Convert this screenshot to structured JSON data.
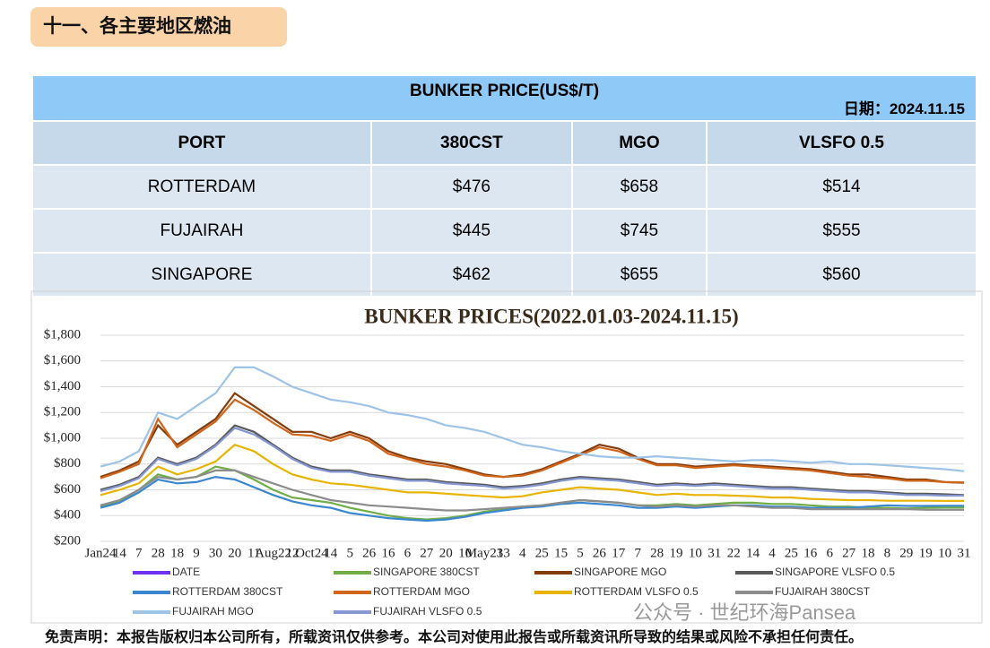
{
  "header": {
    "title": "十一、各主要地区燃油"
  },
  "table": {
    "title": "BUNKER PRICE(US$/T)",
    "date": "日期：2024.11.15",
    "columns": [
      "PORT",
      "380CST",
      "MGO",
      "VLSFO 0.5"
    ],
    "rows": [
      [
        "ROTTERDAM",
        "$476",
        "$658",
        "$514"
      ],
      [
        "FUJAIRAH",
        "$445",
        "$745",
        "$555"
      ],
      [
        "SINGAPORE",
        "$462",
        "$655",
        "$560"
      ]
    ]
  },
  "chart_data": {
    "type": "line",
    "title": "BUNKER PRICES(2022.01.03-2024.11.15)",
    "categories": [
      "Jan24",
      "14",
      "7",
      "28",
      "18",
      "9",
      "30",
      "20",
      "11",
      "Aug22",
      "12",
      "Oct24",
      "14",
      "5",
      "26",
      "16",
      "6",
      "27",
      "20",
      "10",
      "May23",
      "13",
      "4",
      "25",
      "15",
      "5",
      "26",
      "17",
      "7",
      "28",
      "19",
      "10",
      "31",
      "22",
      "14",
      "4",
      "25",
      "16",
      "6",
      "27",
      "18",
      "8",
      "29",
      "19",
      "10",
      "31"
    ],
    "ylim": [
      200,
      1800
    ],
    "yticks": [
      {
        "value": 200,
        "label": "$200"
      },
      {
        "value": 400,
        "label": "$400"
      },
      {
        "value": 600,
        "label": "$600"
      },
      {
        "value": 800,
        "label": "$800"
      },
      {
        "value": 1000,
        "label": "$1,000"
      },
      {
        "value": 1200,
        "label": "$1,200"
      },
      {
        "value": 1400,
        "label": "$1,400"
      },
      {
        "value": 1600,
        "label": "$1,600"
      },
      {
        "value": 1800,
        "label": "$1,800"
      }
    ],
    "grid": true,
    "series": [
      {
        "name": "DATE",
        "color": "#7030f0",
        "values": [
          null,
          null,
          null,
          null,
          null,
          null,
          null,
          null,
          null,
          null,
          null,
          null,
          null,
          null,
          null,
          null,
          null,
          null,
          null,
          null,
          null,
          null,
          null,
          null,
          null,
          null,
          null,
          null,
          null,
          null,
          null,
          null,
          null,
          null,
          null,
          null,
          null,
          null,
          null,
          null,
          null,
          null,
          null,
          null,
          null,
          null
        ]
      },
      {
        "name": "SINGAPORE 380CST",
        "color": "#70ad47",
        "values": [
          470,
          510,
          600,
          720,
          680,
          700,
          780,
          750,
          680,
          600,
          540,
          520,
          500,
          460,
          430,
          400,
          380,
          370,
          380,
          400,
          430,
          450,
          470,
          480,
          500,
          520,
          510,
          500,
          480,
          480,
          490,
          480,
          490,
          500,
          500,
          490,
          490,
          480,
          470,
          470,
          460,
          460,
          455,
          460,
          462,
          462
        ]
      },
      {
        "name": "SINGAPORE MGO",
        "color": "#843c0c",
        "values": [
          700,
          750,
          820,
          1100,
          950,
          1050,
          1150,
          1350,
          1250,
          1150,
          1050,
          1050,
          1000,
          1050,
          1000,
          900,
          850,
          820,
          800,
          760,
          720,
          700,
          720,
          760,
          820,
          880,
          950,
          920,
          850,
          800,
          800,
          780,
          790,
          800,
          790,
          780,
          770,
          760,
          740,
          720,
          720,
          700,
          680,
          680,
          660,
          655
        ]
      },
      {
        "name": "SINGAPORE VLSFO 0.5",
        "color": "#595959",
        "values": [
          600,
          640,
          700,
          850,
          800,
          850,
          950,
          1100,
          1050,
          950,
          850,
          780,
          750,
          750,
          720,
          700,
          680,
          680,
          660,
          650,
          640,
          620,
          630,
          650,
          680,
          700,
          690,
          680,
          660,
          640,
          650,
          640,
          650,
          640,
          630,
          620,
          620,
          610,
          600,
          590,
          590,
          580,
          570,
          570,
          565,
          560
        ]
      },
      {
        "name": "ROTTERDAM 380CST",
        "color": "#3a87cf",
        "values": [
          460,
          500,
          580,
          680,
          650,
          660,
          700,
          680,
          620,
          560,
          510,
          480,
          460,
          420,
          400,
          380,
          370,
          360,
          370,
          390,
          420,
          440,
          460,
          470,
          490,
          500,
          490,
          480,
          460,
          460,
          470,
          460,
          470,
          480,
          480,
          470,
          470,
          460,
          460,
          460,
          470,
          480,
          475,
          475,
          476,
          476
        ]
      },
      {
        "name": "ROTTERDAM MGO",
        "color": "#d0661c",
        "values": [
          690,
          740,
          800,
          1150,
          930,
          1030,
          1130,
          1300,
          1220,
          1120,
          1030,
          1020,
          980,
          1030,
          980,
          880,
          840,
          800,
          780,
          750,
          710,
          700,
          710,
          750,
          810,
          870,
          930,
          900,
          840,
          790,
          790,
          770,
          780,
          790,
          780,
          770,
          760,
          750,
          730,
          710,
          700,
          690,
          670,
          670,
          660,
          658
        ]
      },
      {
        "name": "ROTTERDAM VLSFO 0.5",
        "color": "#e8b400",
        "values": [
          560,
          600,
          650,
          780,
          720,
          760,
          820,
          950,
          900,
          800,
          720,
          680,
          650,
          640,
          620,
          600,
          580,
          580,
          570,
          560,
          550,
          540,
          550,
          580,
          600,
          620,
          610,
          600,
          580,
          560,
          570,
          560,
          560,
          555,
          550,
          540,
          540,
          530,
          525,
          520,
          520,
          515,
          515,
          515,
          514,
          514
        ]
      },
      {
        "name": "FUJAIRAH  380CST",
        "color": "#8c8c8c",
        "values": [
          480,
          520,
          600,
          700,
          680,
          700,
          750,
          750,
          700,
          650,
          600,
          560,
          520,
          500,
          480,
          470,
          460,
          450,
          440,
          440,
          450,
          460,
          470,
          480,
          500,
          520,
          510,
          500,
          480,
          470,
          480,
          470,
          480,
          480,
          470,
          460,
          460,
          450,
          450,
          450,
          450,
          450,
          450,
          445,
          445,
          445
        ]
      },
      {
        "name": "FUJAIRAH MGO",
        "color": "#9dc3e6",
        "values": [
          780,
          820,
          900,
          1200,
          1150,
          1250,
          1350,
          1550,
          1550,
          1480,
          1400,
          1350,
          1300,
          1280,
          1250,
          1200,
          1180,
          1150,
          1100,
          1080,
          1050,
          1000,
          950,
          930,
          900,
          880,
          860,
          850,
          850,
          860,
          850,
          840,
          830,
          820,
          830,
          830,
          820,
          810,
          820,
          800,
          800,
          790,
          780,
          770,
          760,
          745
        ]
      },
      {
        "name": "FUJAIRAH VLSFO 0.5",
        "color": "#8497d0",
        "values": [
          590,
          630,
          690,
          840,
          790,
          840,
          940,
          1080,
          1030,
          940,
          840,
          770,
          740,
          740,
          710,
          690,
          670,
          670,
          650,
          640,
          630,
          610,
          620,
          640,
          670,
          690,
          680,
          670,
          650,
          630,
          640,
          630,
          640,
          630,
          620,
          610,
          610,
          600,
          590,
          580,
          580,
          570,
          560,
          560,
          555,
          555
        ]
      }
    ]
  },
  "footer": {
    "disclaimer": "免责声明：本报告版权归本公司所有，所载资讯仅供参考。本公司对使用此报告或所载资讯所导致的结果或风险不承担任何责任。",
    "watermark": "公众号 · 世纪环海Pansea"
  }
}
